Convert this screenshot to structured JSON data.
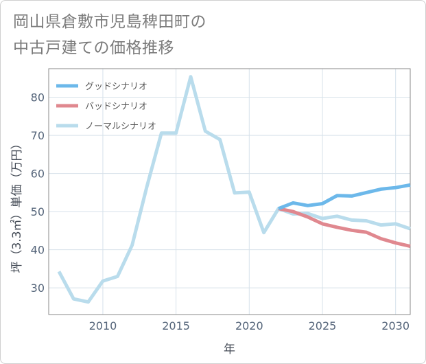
{
  "title": {
    "line1": "岡山県倉敷市児島稗田町の",
    "line2": "中古戸建ての価格推移"
  },
  "chart_data": {
    "type": "line",
    "xlabel": "年",
    "ylabel": "坪（3.3㎡）単価（万円）",
    "xlim": [
      2006.3,
      2031
    ],
    "ylim": [
      23,
      87.5
    ],
    "xticks": [
      2010,
      2015,
      2020,
      2025,
      2030
    ],
    "yticks": [
      30,
      40,
      50,
      60,
      70,
      80
    ],
    "grid": true,
    "legend_position": "top-left",
    "series": [
      {
        "name": "グッドシナリオ",
        "color": "#6cb8ea",
        "x": [
          2022,
          2023,
          2024,
          2025,
          2026,
          2027,
          2028,
          2029,
          2030,
          2031
        ],
        "values": [
          50.8,
          52.3,
          51.6,
          52.1,
          54.2,
          54.1,
          55.0,
          55.9,
          56.3,
          57.0
        ]
      },
      {
        "name": "バッドシナリオ",
        "color": "#e0888f",
        "x": [
          2022,
          2023,
          2024,
          2025,
          2026,
          2027,
          2028,
          2029,
          2030,
          2031
        ],
        "values": [
          50.8,
          50.0,
          48.6,
          46.8,
          45.9,
          45.1,
          44.6,
          42.9,
          41.8,
          40.9
        ]
      },
      {
        "name": "ノーマルシナリオ",
        "color": "#b9dcec",
        "x": [
          2007,
          2008,
          2009,
          2010,
          2011,
          2012,
          2013,
          2014,
          2015,
          2016,
          2017,
          2018,
          2019,
          2020,
          2021,
          2022,
          2023,
          2024,
          2025,
          2026,
          2027,
          2028,
          2029,
          2030,
          2031
        ],
        "values": [
          34.3,
          27.1,
          26.3,
          31.8,
          33.0,
          41.2,
          56.5,
          70.6,
          70.6,
          85.4,
          71.1,
          68.9,
          54.9,
          55.1,
          44.5,
          50.8,
          49.4,
          49.5,
          48.2,
          48.8,
          47.8,
          47.6,
          46.5,
          46.8,
          45.5
        ]
      }
    ]
  }
}
